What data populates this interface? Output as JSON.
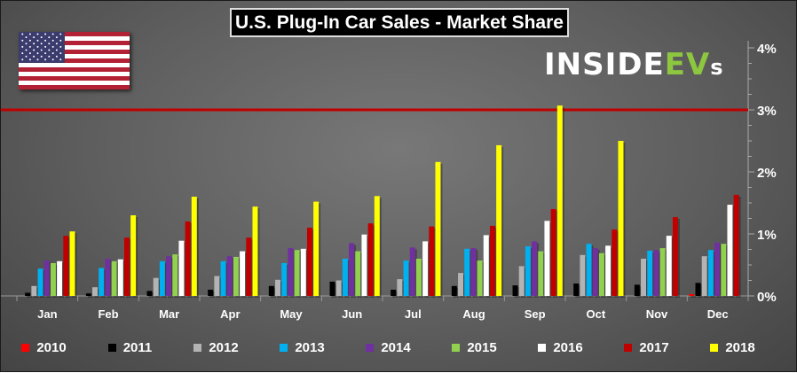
{
  "logo_text": {
    "part1": "INSIDE",
    "part2": "EV",
    "part3": "s"
  },
  "chart_data": {
    "type": "bar",
    "title": "U.S. Plug-In Car Sales - Market Share",
    "xlabel": "",
    "ylabel": "",
    "ylim": [
      0,
      4
    ],
    "yticks": [
      "0%",
      "1%",
      "2%",
      "3%",
      "4%"
    ],
    "reference_line": {
      "value": 3,
      "color": "#c00000"
    },
    "categories": [
      "Jan",
      "Feb",
      "Mar",
      "Apr",
      "May",
      "Jun",
      "Jul",
      "Aug",
      "Sep",
      "Oct",
      "Nov",
      "Dec"
    ],
    "legend_position": "bottom",
    "series": [
      {
        "name": "2010",
        "color": "#ff0000",
        "values": [
          0,
          0,
          0,
          0,
          0,
          0,
          0,
          0,
          0,
          0,
          0,
          0.03
        ]
      },
      {
        "name": "2011",
        "color": "#000000",
        "values": [
          0.05,
          0.04,
          0.08,
          0.1,
          0.16,
          0.23,
          0.1,
          0.16,
          0.17,
          0.2,
          0.18,
          0.21
        ]
      },
      {
        "name": "2012",
        "color": "#b3b3b3",
        "values": [
          0.16,
          0.14,
          0.29,
          0.32,
          0.26,
          0.25,
          0.27,
          0.37,
          0.48,
          0.66,
          0.6,
          0.64
        ]
      },
      {
        "name": "2013",
        "color": "#00b0f0",
        "values": [
          0.44,
          0.45,
          0.56,
          0.56,
          0.53,
          0.6,
          0.57,
          0.76,
          0.8,
          0.84,
          0.73,
          0.74
        ]
      },
      {
        "name": "2014",
        "color": "#7030a0",
        "values": [
          0.57,
          0.6,
          0.64,
          0.64,
          0.77,
          0.85,
          0.78,
          0.77,
          0.88,
          0.77,
          0.74,
          0.86
        ]
      },
      {
        "name": "2015",
        "color": "#92d050",
        "values": [
          0.53,
          0.56,
          0.67,
          0.63,
          0.74,
          0.72,
          0.6,
          0.57,
          0.72,
          0.69,
          0.77,
          0.84
        ]
      },
      {
        "name": "2016",
        "color": "#ffffff",
        "values": [
          0.56,
          0.59,
          0.89,
          0.72,
          0.76,
          0.99,
          0.88,
          0.98,
          1.21,
          0.81,
          0.97,
          1.47
        ]
      },
      {
        "name": "2017",
        "color": "#c00000",
        "values": [
          0.97,
          0.94,
          1.2,
          0.94,
          1.1,
          1.17,
          1.12,
          1.13,
          1.4,
          1.07,
          1.27,
          1.63
        ]
      },
      {
        "name": "2018",
        "color": "#ffff00",
        "values": [
          1.04,
          1.3,
          1.6,
          1.44,
          1.52,
          1.61,
          2.16,
          2.43,
          3.07,
          2.5,
          null,
          null
        ]
      }
    ]
  }
}
